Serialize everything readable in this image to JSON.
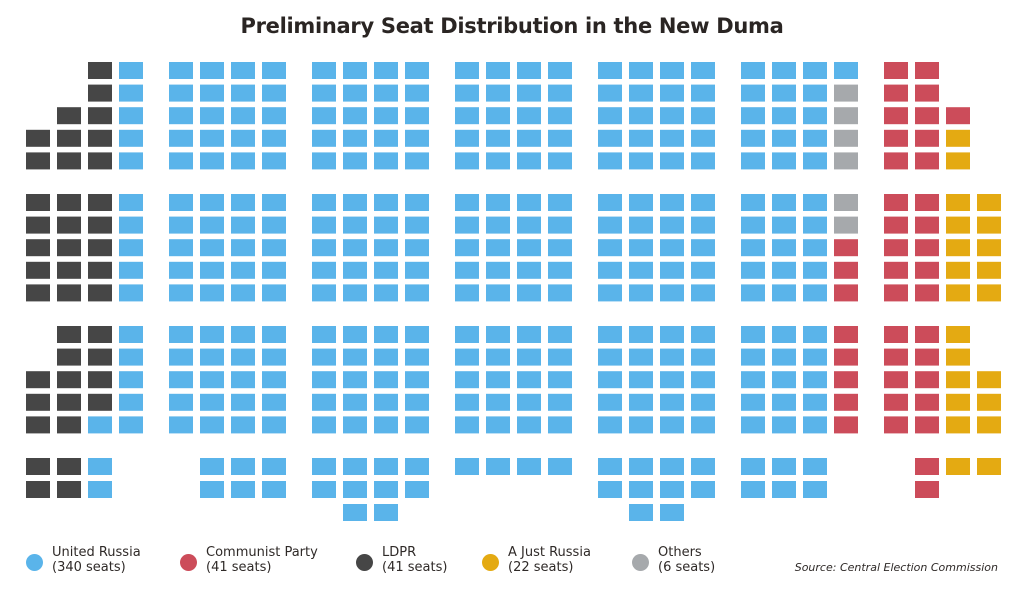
{
  "title": "Preliminary Seat Distribution in the New Duma",
  "source": "Source: Central Election Commission",
  "colors": {
    "united_russia": "#5ab4ea",
    "communist": "#cc4c5a",
    "ldpr": "#464646",
    "just_russia": "#e4aa12",
    "others": "#a6a9ac"
  },
  "chart_data": {
    "type": "waffle",
    "title": "Preliminary Seat Distribution in the New Duma",
    "total_seats": 450,
    "series": [
      {
        "key": "ldpr",
        "name": "LDPR",
        "label_line2": "(41 seats)",
        "value": 41
      },
      {
        "key": "united_russia",
        "name": "United Russia",
        "label_line2": "(340 seats)",
        "value": 340
      },
      {
        "key": "others",
        "name": "Others",
        "label_line2": "(6 seats)",
        "value": 6
      },
      {
        "key": "communist",
        "name": "Communist Party",
        "label_line2": "(41 seats)",
        "value": 41
      },
      {
        "key": "just_russia",
        "name": "A Just Russia",
        "label_line2": "(22 seats)",
        "value": 22
      }
    ],
    "legend": [
      {
        "key": "united_russia",
        "name": "United Russia",
        "seats": "(340 seats)"
      },
      {
        "key": "communist",
        "name": "Communist Party",
        "seats": "(41 seats)"
      },
      {
        "key": "ldpr",
        "name": "LDPR",
        "seats": "(41 seats)"
      },
      {
        "key": "just_russia",
        "name": "A Just Russia",
        "seats": "(22 seats)"
      },
      {
        "key": "others",
        "name": "Others",
        "seats": "(6 seats)"
      }
    ]
  }
}
